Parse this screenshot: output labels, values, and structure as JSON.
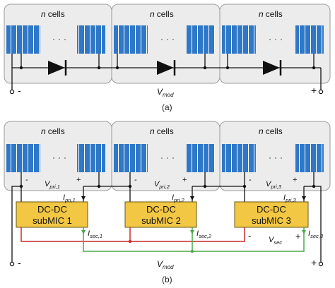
{
  "panel_a": {
    "cell_group_label": "cells",
    "cell_group_n": "n",
    "terminal_minus": "-",
    "terminal_plus": "+",
    "vmod_v": "V",
    "vmod_sub": "mod",
    "caption": "(a)"
  },
  "panel_b": {
    "cell_group_label": "cells",
    "cell_group_n": "n",
    "converters": [
      {
        "line1": "DC-DC",
        "line2": "subMIC 1",
        "vpri_sub": "pri,1",
        "ipri_sub": "pri,1",
        "isec_sub": "sec,1"
      },
      {
        "line1": "DC-DC",
        "line2": "subMIC 2",
        "vpri_sub": "pri,2",
        "ipri_sub": "pri,2",
        "isec_sub": "sec,2"
      },
      {
        "line1": "DC-DC",
        "line2": "subMIC 3",
        "vpri_sub": "pri,3",
        "ipri_sub": "pri,3",
        "isec_sub": "sec,3"
      }
    ],
    "v_letter": "V",
    "i_letter": "I",
    "vsec_sub": "sec",
    "vmod_sub": "mod",
    "plus": "+",
    "minus": "-",
    "caption": "(b)"
  },
  "colors": {
    "cell": "#2f78c8",
    "converter": "#f2c744",
    "pri_wire": "#cc2a2a",
    "sec_wire": "#4aa84a",
    "group_bg": "#ececec"
  }
}
